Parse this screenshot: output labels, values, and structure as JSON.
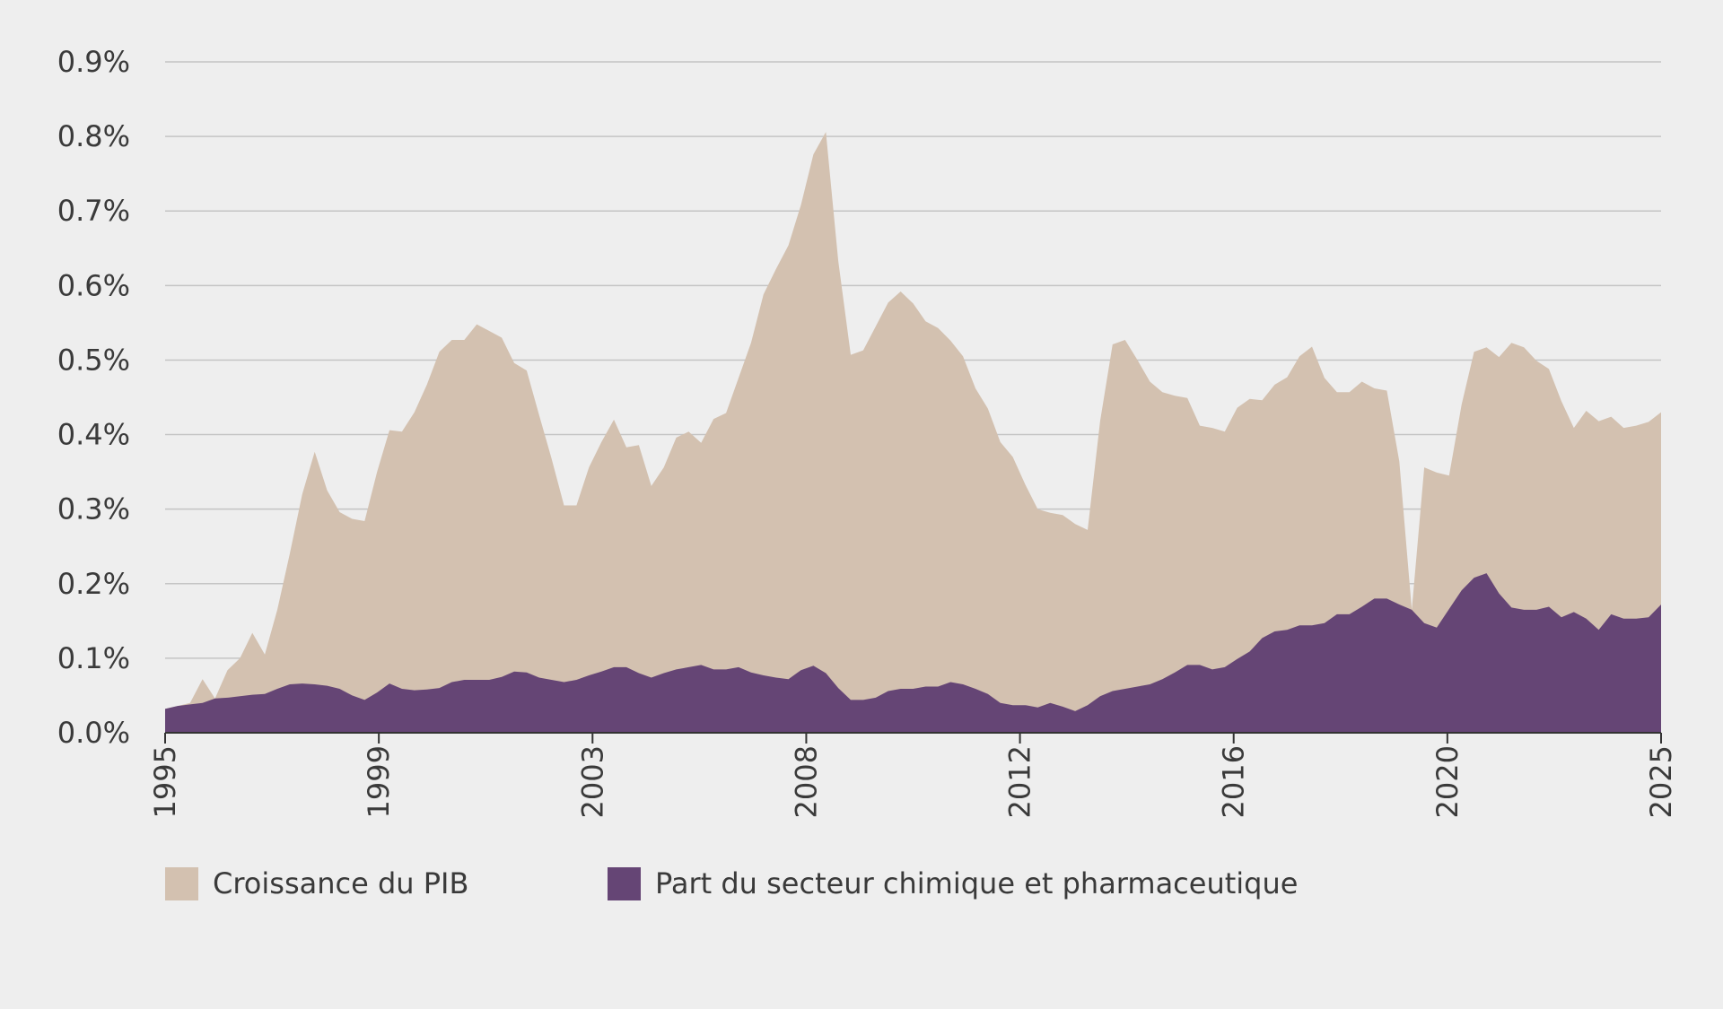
{
  "chart_data": {
    "type": "area",
    "stacked": false,
    "title": "",
    "xlabel": "",
    "ylabel": "",
    "x_start": 1995,
    "x_end": 2025,
    "x_step": 0.25,
    "x_tick_labels": [
      "1995",
      "1999",
      "2003",
      "2008",
      "2012",
      "2016",
      "2020",
      "2025"
    ],
    "ylim": [
      0,
      0.9
    ],
    "y_ticks": [
      0,
      0.1,
      0.2,
      0.3,
      0.4,
      0.5,
      0.6,
      0.7,
      0.8,
      0.9
    ],
    "y_tick_labels": [
      "0.0%",
      "0.1%",
      "0.2%",
      "0.3%",
      "0.4%",
      "0.5%",
      "0.6%",
      "0.7%",
      "0.8%",
      "0.9%"
    ],
    "grid": "horizontal",
    "legend_position": "bottom-left",
    "series": [
      {
        "name": "Croissance du PIB",
        "color": "#d3c1b0",
        "values": [
          0.032,
          0.036,
          0.04,
          0.072,
          0.046,
          0.084,
          0.1,
          0.134,
          0.105,
          0.165,
          0.24,
          0.32,
          0.377,
          0.325,
          0.296,
          0.287,
          0.284,
          0.35,
          0.406,
          0.404,
          0.43,
          0.467,
          0.511,
          0.527,
          0.527,
          0.548,
          0.539,
          0.53,
          0.496,
          0.486,
          0.426,
          0.368,
          0.305,
          0.305,
          0.356,
          0.39,
          0.42,
          0.383,
          0.386,
          0.331,
          0.356,
          0.396,
          0.404,
          0.389,
          0.421,
          0.429,
          0.476,
          0.523,
          0.588,
          0.622,
          0.654,
          0.708,
          0.776,
          0.806,
          0.633,
          0.507,
          0.513,
          0.545,
          0.577,
          0.592,
          0.576,
          0.552,
          0.543,
          0.526,
          0.505,
          0.462,
          0.435,
          0.39,
          0.37,
          0.333,
          0.3,
          0.295,
          0.292,
          0.28,
          0.272,
          0.418,
          0.521,
          0.527,
          0.5,
          0.471,
          0.457,
          0.452,
          0.449,
          0.412,
          0.409,
          0.404,
          0.436,
          0.448,
          0.446,
          0.467,
          0.477,
          0.505,
          0.518,
          0.476,
          0.457,
          0.457,
          0.471,
          0.462,
          0.459,
          0.364,
          0.165,
          0.356,
          0.349,
          0.345,
          0.44,
          0.511,
          0.517,
          0.504,
          0.523,
          0.517,
          0.499,
          0.488,
          0.445,
          0.409,
          0.432,
          0.418,
          0.424,
          0.409,
          0.412,
          0.417,
          0.43
        ]
      },
      {
        "name": "Part du secteur chimique et pharmaceutique",
        "color": "#654575",
        "values": [
          0.032,
          0.036,
          0.038,
          0.04,
          0.046,
          0.047,
          0.049,
          0.051,
          0.052,
          0.059,
          0.065,
          0.066,
          0.065,
          0.063,
          0.059,
          0.05,
          0.044,
          0.054,
          0.066,
          0.059,
          0.057,
          0.058,
          0.06,
          0.068,
          0.071,
          0.071,
          0.071,
          0.075,
          0.082,
          0.081,
          0.074,
          0.071,
          0.068,
          0.071,
          0.077,
          0.082,
          0.088,
          0.088,
          0.08,
          0.074,
          0.08,
          0.085,
          0.088,
          0.091,
          0.085,
          0.085,
          0.088,
          0.081,
          0.077,
          0.074,
          0.072,
          0.084,
          0.09,
          0.08,
          0.06,
          0.044,
          0.044,
          0.047,
          0.056,
          0.059,
          0.059,
          0.062,
          0.062,
          0.068,
          0.065,
          0.059,
          0.052,
          0.04,
          0.037,
          0.037,
          0.034,
          0.04,
          0.035,
          0.029,
          0.037,
          0.049,
          0.056,
          0.059,
          0.062,
          0.065,
          0.072,
          0.081,
          0.091,
          0.091,
          0.085,
          0.088,
          0.099,
          0.109,
          0.127,
          0.136,
          0.138,
          0.144,
          0.144,
          0.147,
          0.159,
          0.159,
          0.169,
          0.18,
          0.18,
          0.172,
          0.165,
          0.147,
          0.141,
          0.166,
          0.191,
          0.208,
          0.214,
          0.187,
          0.168,
          0.165,
          0.165,
          0.169,
          0.155,
          0.162,
          0.153,
          0.138,
          0.159,
          0.153,
          0.153,
          0.155,
          0.172
        ]
      }
    ]
  }
}
